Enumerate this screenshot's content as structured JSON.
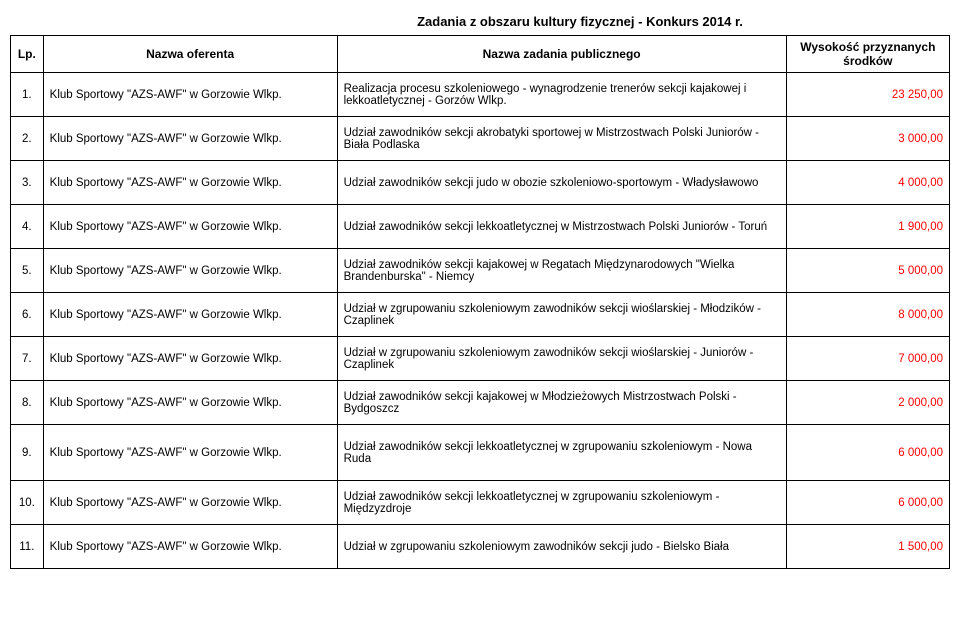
{
  "title": "Zadania z obszaru kultury fizycznej - Konkurs 2014 r.",
  "headers": {
    "lp": "Lp.",
    "oferent": "Nazwa oferenta",
    "zadanie": "Nazwa zadania publicznego",
    "kwota": "Wysokość przyznanych środków"
  },
  "rows": [
    {
      "lp": "1.",
      "oferent": "Klub Sportowy \"AZS-AWF\" w Gorzowie Wlkp.",
      "zadanie": "Realizacja procesu szkoleniowego - wynagrodzenie trenerów sekcji kajakowej i lekkoatletycznej - Gorzów Wlkp.",
      "kwota": "23 250,00"
    },
    {
      "lp": "2.",
      "oferent": "Klub Sportowy \"AZS-AWF\" w Gorzowie Wlkp.",
      "zadanie": "Udział zawodników sekcji akrobatyki sportowej w Mistrzostwach Polski Juniorów - Biała Podlaska",
      "kwota": "3 000,00"
    },
    {
      "lp": "3.",
      "oferent": "Klub Sportowy \"AZS-AWF\" w Gorzowie Wlkp.",
      "zadanie": "Udział zawodników sekcji judo w obozie szkoleniowo-sportowym - Władysławowo",
      "kwota": "4 000,00"
    },
    {
      "lp": "4.",
      "oferent": "Klub Sportowy \"AZS-AWF\" w Gorzowie Wlkp.",
      "zadanie": "Udział zawodników sekcji lekkoatletycznej w Mistrzostwach Polski Juniorów - Toruń",
      "kwota": "1 900,00"
    },
    {
      "lp": "5.",
      "oferent": "Klub Sportowy \"AZS-AWF\" w Gorzowie Wlkp.",
      "zadanie": "Udział zawodników sekcji kajakowej w Regatach Międzynarodowych \"Wielka Brandenburska\" - Niemcy",
      "kwota": "5 000,00"
    },
    {
      "lp": "6.",
      "oferent": "Klub Sportowy \"AZS-AWF\" w Gorzowie Wlkp.",
      "zadanie": "Udział w zgrupowaniu szkoleniowym zawodników sekcji wioślarskiej - Młodzików - Czaplinek",
      "kwota": "8 000,00"
    },
    {
      "lp": "7.",
      "oferent": "Klub Sportowy \"AZS-AWF\" w Gorzowie Wlkp.",
      "zadanie": "Udział w zgrupowaniu szkoleniowym zawodników sekcji wioślarskiej - Juniorów - Czaplinek",
      "kwota": "7 000,00"
    },
    {
      "lp": "8.",
      "oferent": "Klub Sportowy \"AZS-AWF\" w Gorzowie Wlkp.",
      "zadanie": "Udział zawodników sekcji kajakowej w Młodzieżowych Mistrzostwach Polski - Bydgoszcz",
      "kwota": "2 000,00"
    },
    {
      "lp": "9.",
      "oferent": "Klub Sportowy \"AZS-AWF\" w Gorzowie Wlkp.",
      "zadanie": "Udział zawodników sekcji lekkoatletycznej w zgrupowaniu szkoleniowym - Nowa Ruda",
      "kwota": "6 000,00"
    },
    {
      "lp": "10.",
      "oferent": "Klub Sportowy \"AZS-AWF\" w Gorzowie Wlkp.",
      "zadanie": "Udział zawodników sekcji lekkoatletycznej w zgrupowaniu szkoleniowym - Międzyzdroje",
      "kwota": "6 000,00"
    },
    {
      "lp": "11.",
      "oferent": "Klub Sportowy \"AZS-AWF\" w Gorzowie Wlkp.",
      "zadanie": "Udział w zgrupowaniu szkoleniowym zawodników sekcji judo - Bielsko Biała",
      "kwota": "1 500,00"
    }
  ]
}
